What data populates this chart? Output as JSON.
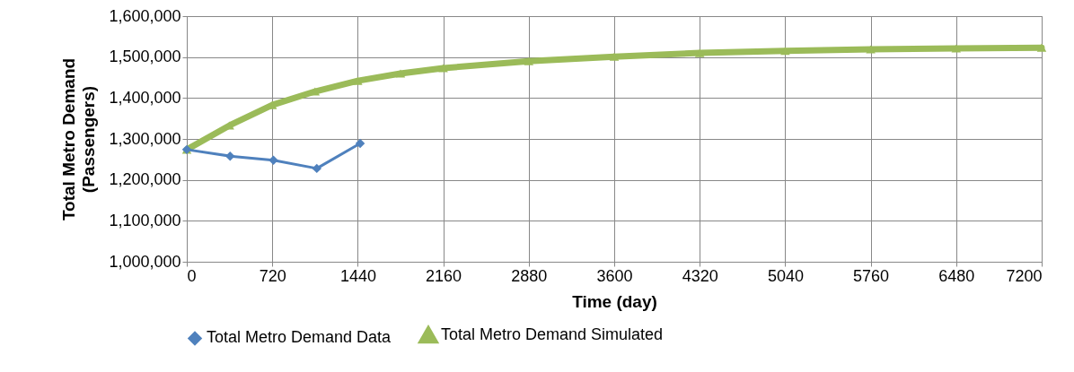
{
  "chart_data": {
    "type": "line",
    "xlabel": "Time (day)",
    "ylabel": "Total Metro Demand\n(Passengers)",
    "xlim": [
      0,
      7200
    ],
    "xticks": [
      0,
      720,
      1440,
      2160,
      2880,
      3600,
      4320,
      5040,
      5760,
      6480,
      7200
    ],
    "ylim": [
      1000000,
      1600000
    ],
    "yticks": [
      {
        "value": 1000000,
        "label": "1,000,000"
      },
      {
        "value": 1100000,
        "label": "1,100,000"
      },
      {
        "value": 1200000,
        "label": "1,200,000"
      },
      {
        "value": 1300000,
        "label": "1,300,000"
      },
      {
        "value": 1400000,
        "label": "1,400,000"
      },
      {
        "value": 1500000,
        "label": "1,500,000"
      },
      {
        "value": 1600000,
        "label": "1,600,000"
      }
    ],
    "grid": true,
    "legend": "bottom",
    "series": [
      {
        "name": "Total Metro Demand Data",
        "color": "#4f81bd",
        "marker": "diamond",
        "x": [
          0,
          365,
          730,
          1095,
          1460
        ],
        "values": [
          1274000,
          1258000,
          1248000,
          1228000,
          1289000
        ]
      },
      {
        "name": "Total Metro Demand Simulated",
        "color": "#9bbb59",
        "marker": "triangle",
        "x": [
          0,
          360,
          720,
          1080,
          1440,
          1800,
          2160,
          2880,
          3600,
          4320,
          5040,
          5760,
          6480,
          7200
        ],
        "values": [
          1274000,
          1333000,
          1383000,
          1416000,
          1442000,
          1460000,
          1473000,
          1490000,
          1501000,
          1510000,
          1515000,
          1519000,
          1521000,
          1523000
        ]
      }
    ]
  }
}
